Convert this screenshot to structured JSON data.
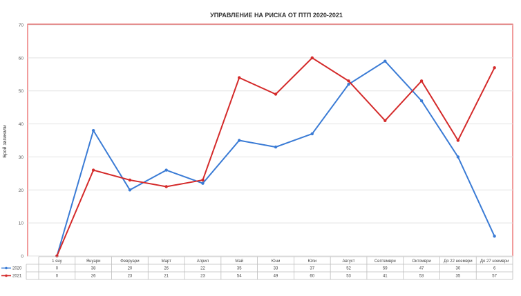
{
  "chart_data": {
    "type": "line",
    "title": "УПРАВЛЕНИЕ НА РИСКА ОТ ПТП  2020-2021",
    "ylabel": "Брой загинали",
    "xlabel": "",
    "ylim": [
      0,
      70
    ],
    "yticks": [
      0,
      10,
      20,
      30,
      40,
      50,
      60,
      70
    ],
    "grid": true,
    "legend_placement": "bottom-left, in data table",
    "categories": [
      "1 яну",
      "Януари",
      "Февруари",
      "Март",
      "Април",
      "Май",
      "Юни",
      "Юли",
      "Август",
      "Септември",
      "Октомври",
      "До 22 ноември",
      "До 27 ноември"
    ],
    "series": [
      {
        "name": "2020",
        "color": "#3a7bd5",
        "values": [
          0,
          38,
          20,
          26,
          22,
          35,
          33,
          37,
          52,
          59,
          47,
          30,
          6
        ]
      },
      {
        "name": "2021",
        "color": "#d42a2a",
        "values": [
          0,
          26,
          23,
          21,
          23,
          54,
          49,
          60,
          53,
          41,
          53,
          35,
          57
        ]
      }
    ]
  }
}
